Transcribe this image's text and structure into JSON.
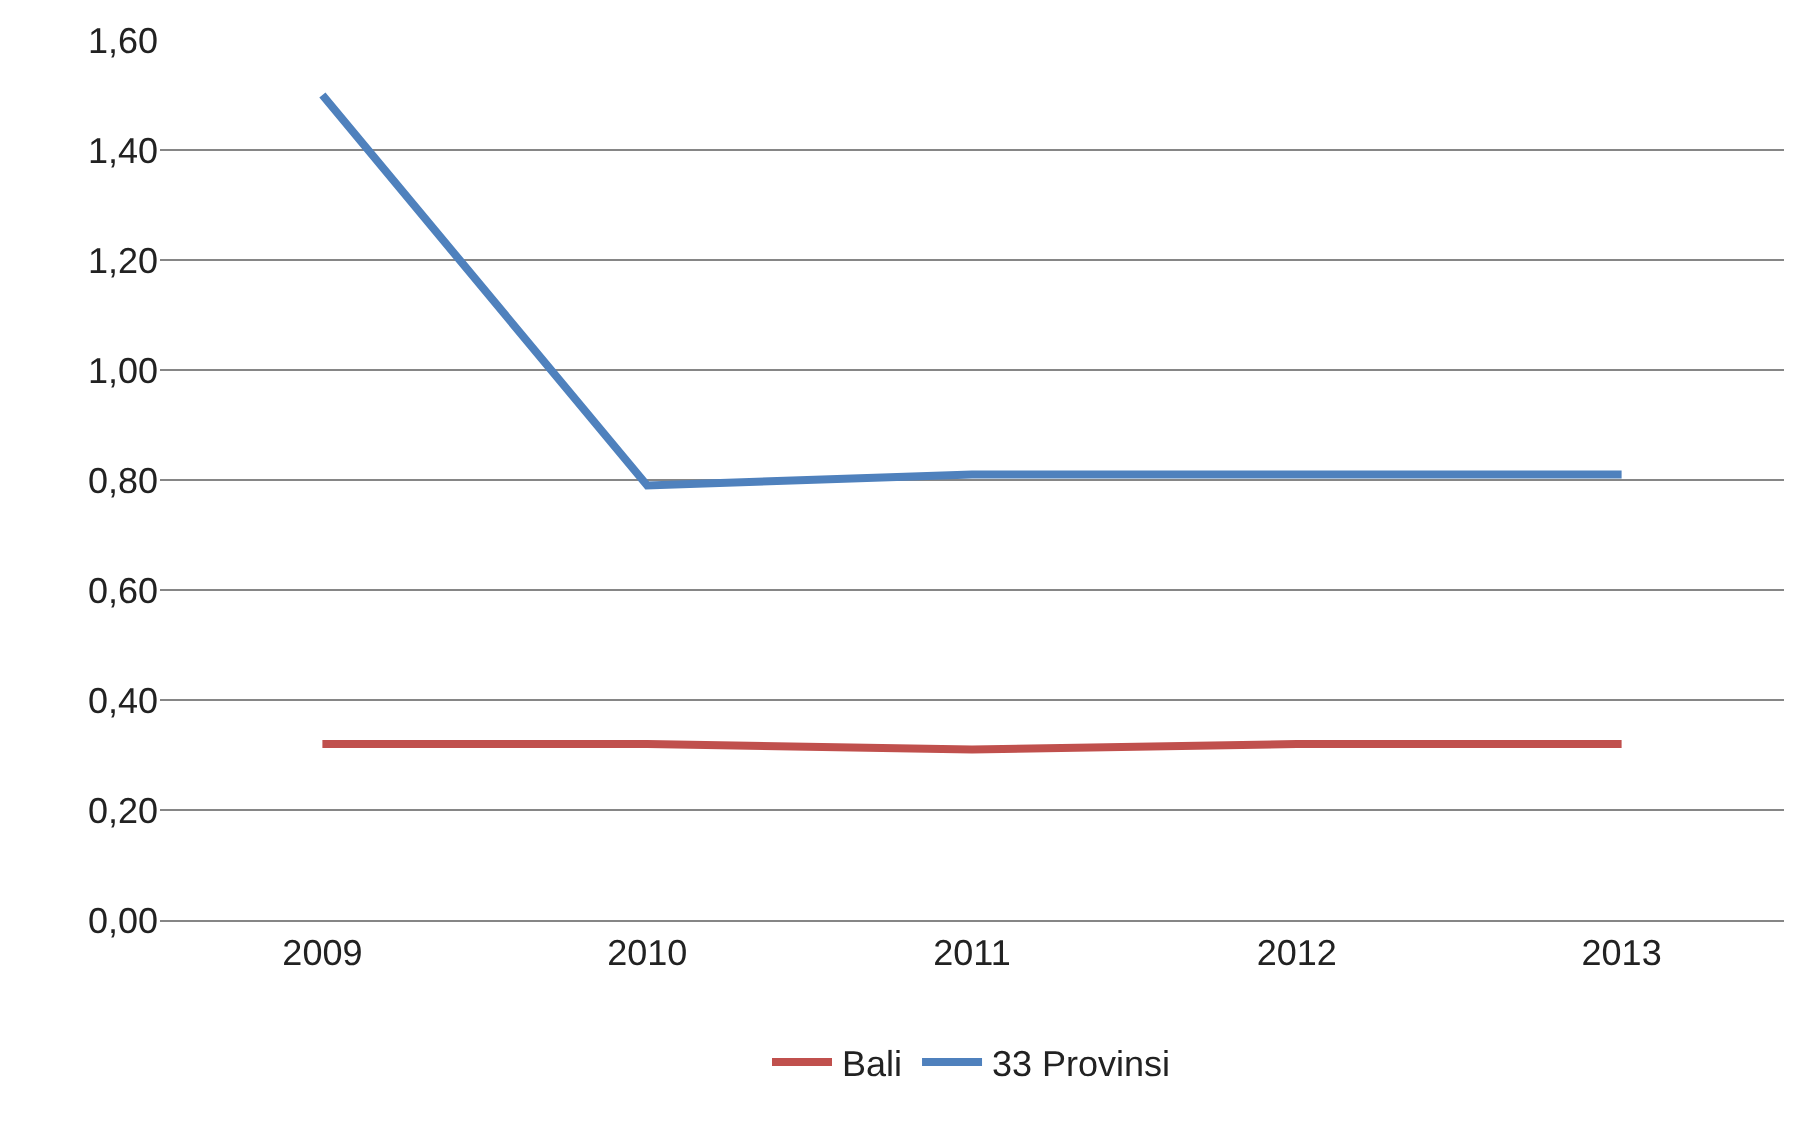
{
  "chart_data": {
    "type": "line",
    "categories": [
      "2009",
      "2010",
      "2011",
      "2012",
      "2013"
    ],
    "series": [
      {
        "name": "Bali",
        "color": "#c0504d",
        "values": [
          0.32,
          0.32,
          0.31,
          0.32,
          0.32
        ]
      },
      {
        "name": "33 Provinsi",
        "color": "#4f81bd",
        "values": [
          1.5,
          0.79,
          0.81,
          0.81,
          0.81
        ]
      }
    ],
    "ylim": [
      0,
      1.6
    ],
    "yticks": [
      {
        "value": 0,
        "label": "0,00"
      },
      {
        "value": 0.2,
        "label": "0,20"
      },
      {
        "value": 0.4,
        "label": "0,40"
      },
      {
        "value": 0.6,
        "label": "0,60"
      },
      {
        "value": 0.8,
        "label": "0,80"
      },
      {
        "value": 1.0,
        "label": "1,00"
      },
      {
        "value": 1.2,
        "label": "1,20"
      },
      {
        "value": 1.4,
        "label": "1,40"
      },
      {
        "value": 1.6,
        "label": "1,60"
      }
    ],
    "grid": "y",
    "legend": "bottom",
    "marker": "none",
    "line_style": "solid"
  }
}
